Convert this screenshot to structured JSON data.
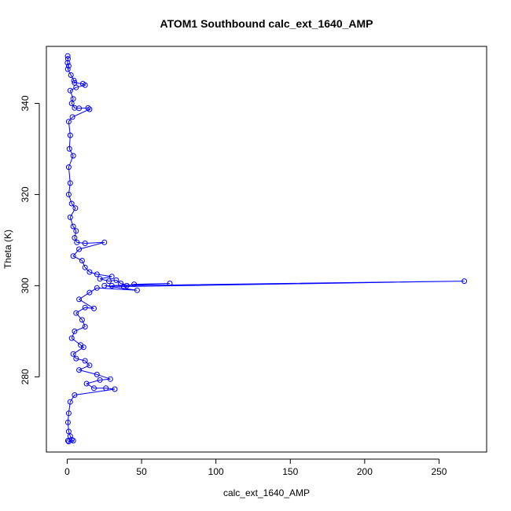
{
  "chart_data": {
    "type": "scatter",
    "title": "ATOM1 Southbound calc_ext_1640_AMP",
    "xlabel": "calc_ext_1640_AMP",
    "ylabel": "Theta (K)",
    "xlim": [
      -14,
      282
    ],
    "ylim": [
      263.5,
      352.5
    ],
    "xticks": [
      0,
      50,
      100,
      150,
      200,
      250
    ],
    "yticks": [
      280,
      300,
      320,
      340
    ],
    "grid": false,
    "legend": "none",
    "colors": {
      "series": "#0000ff",
      "axes": "#000000"
    },
    "series": [
      {
        "marker": "open-circle",
        "connected": true,
        "points": [
          [
            0.3,
            350.4
          ],
          [
            0.5,
            349.8
          ],
          [
            0.2,
            348.9
          ],
          [
            1.0,
            348.2
          ],
          [
            0.4,
            347.5
          ],
          [
            2.5,
            346.2
          ],
          [
            4.5,
            345.0
          ],
          [
            5.0,
            344.5
          ],
          [
            10.5,
            344.3
          ],
          [
            12.0,
            344.0
          ],
          [
            6.0,
            343.5
          ],
          [
            2.0,
            342.8
          ],
          [
            4.0,
            341.0
          ],
          [
            3.0,
            340.0
          ],
          [
            5.0,
            339.0
          ],
          [
            8.0,
            338.9
          ],
          [
            14.0,
            339.0
          ],
          [
            15.0,
            338.7
          ],
          [
            3.5,
            337.0
          ],
          [
            1.0,
            336.0
          ],
          [
            2.0,
            333.0
          ],
          [
            1.5,
            330.0
          ],
          [
            4.0,
            328.5
          ],
          [
            1.0,
            326.0
          ],
          [
            2.0,
            322.5
          ],
          [
            1.0,
            320.0
          ],
          [
            3.0,
            318.0
          ],
          [
            5.5,
            317.0
          ],
          [
            2.0,
            315.0
          ],
          [
            4.0,
            313.0
          ],
          [
            6.0,
            312.0
          ],
          [
            5.0,
            310.5
          ],
          [
            6.5,
            309.5
          ],
          [
            12.0,
            309.3
          ],
          [
            25.0,
            309.5
          ],
          [
            8.0,
            308.0
          ],
          [
            4.0,
            306.5
          ],
          [
            10.0,
            305.5
          ],
          [
            12.0,
            304.0
          ],
          [
            15.0,
            303.0
          ],
          [
            20.0,
            302.5
          ],
          [
            30.0,
            302.0
          ],
          [
            22.0,
            301.5
          ],
          [
            28.0,
            301.0
          ],
          [
            33.0,
            301.2
          ],
          [
            36.0,
            300.5
          ],
          [
            40.0,
            300.0
          ],
          [
            45.0,
            300.3
          ],
          [
            69.0,
            300.5
          ],
          [
            30.0,
            300.0
          ],
          [
            267.0,
            301.0
          ],
          [
            38.0,
            299.8
          ],
          [
            25.0,
            300.0
          ],
          [
            47.0,
            299.0
          ],
          [
            20.0,
            299.5
          ],
          [
            15.0,
            298.5
          ],
          [
            8.0,
            297.0
          ],
          [
            18.0,
            295.0
          ],
          [
            12.0,
            295.2
          ],
          [
            6.0,
            294.0
          ],
          [
            10.0,
            292.5
          ],
          [
            12.0,
            291.0
          ],
          [
            5.0,
            290.0
          ],
          [
            3.0,
            288.5
          ],
          [
            9.0,
            287.0
          ],
          [
            11.0,
            286.5
          ],
          [
            4.0,
            285.0
          ],
          [
            6.0,
            284.0
          ],
          [
            12.0,
            283.5
          ],
          [
            15.0,
            282.5
          ],
          [
            8.0,
            281.5
          ],
          [
            20.0,
            280.5
          ],
          [
            29.0,
            279.5
          ],
          [
            22.0,
            279.3
          ],
          [
            13.0,
            278.5
          ],
          [
            18.0,
            277.5
          ],
          [
            26.0,
            277.5
          ],
          [
            32.0,
            277.3
          ],
          [
            5.0,
            276.0
          ],
          [
            2.0,
            274.5
          ],
          [
            1.0,
            272.0
          ],
          [
            0.5,
            270.0
          ],
          [
            1.0,
            268.0
          ],
          [
            2.0,
            267.0
          ],
          [
            3.0,
            266.2
          ],
          [
            4.0,
            266.0
          ],
          [
            1.0,
            265.8
          ],
          [
            0.5,
            266.0
          ]
        ]
      }
    ]
  }
}
